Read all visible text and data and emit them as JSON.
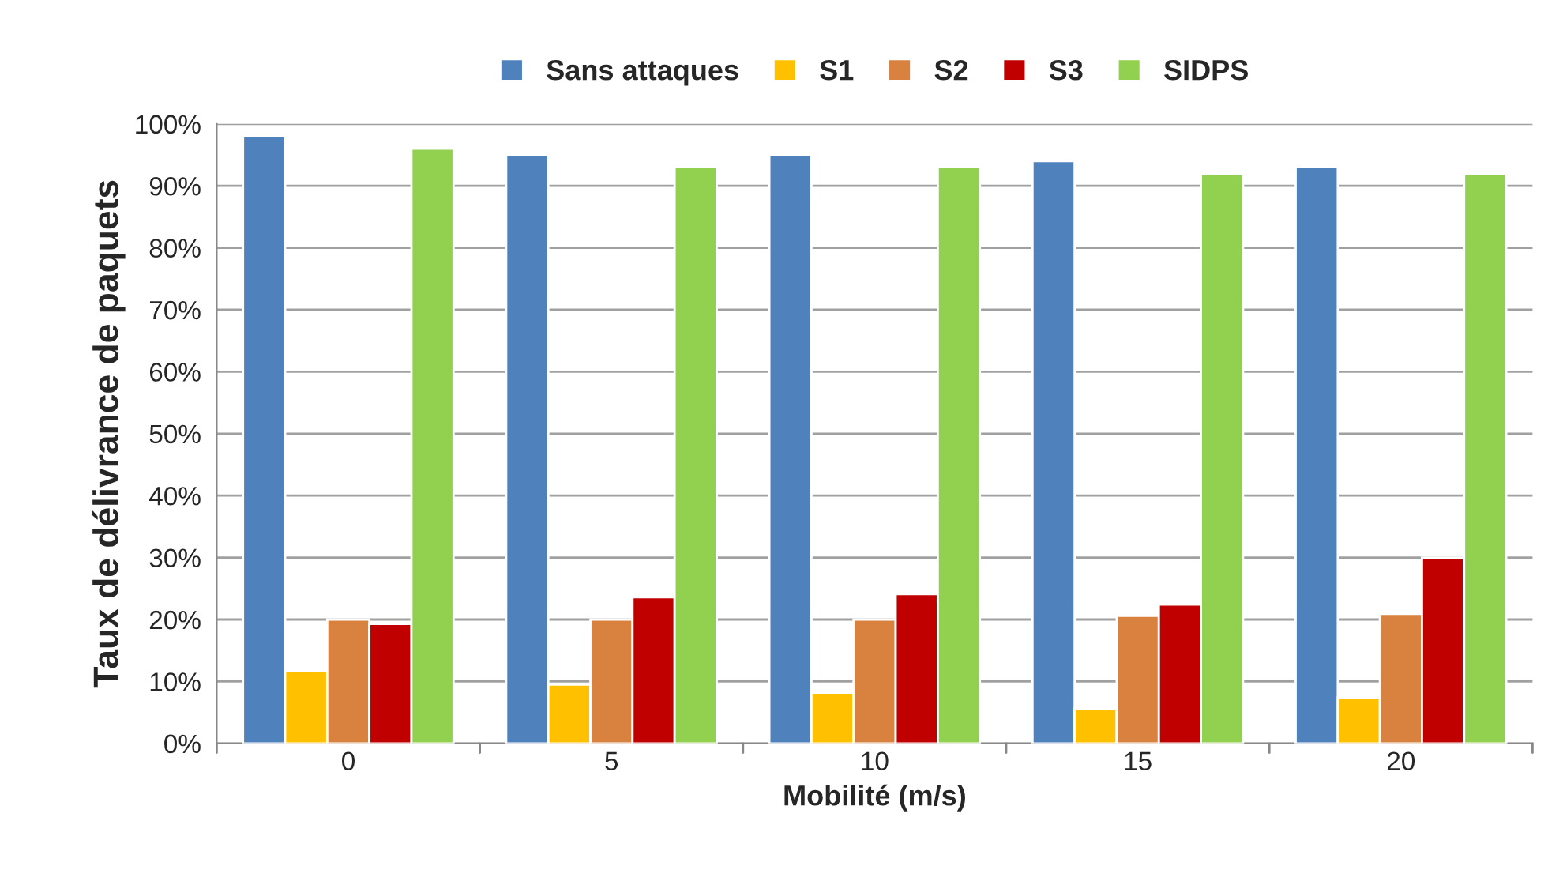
{
  "chart_data": {
    "type": "bar",
    "xlabel": "Mobilité (m/s)",
    "ylabel": "Taux de délivrance de paquets",
    "categories": [
      "0",
      "5",
      "10",
      "15",
      "20"
    ],
    "series": [
      {
        "name": "Sans attaques",
        "color": "#4f81bd",
        "values": [
          98,
          95,
          95,
          94,
          93
        ]
      },
      {
        "name": "S1",
        "color": "#ffc000",
        "values": [
          11.7,
          9.5,
          8.2,
          5.6,
          7.4
        ]
      },
      {
        "name": "S2",
        "color": "#d9823f",
        "values": [
          20,
          20,
          20,
          20.6,
          20.9
        ]
      },
      {
        "name": "S3",
        "color": "#c00000",
        "values": [
          19.3,
          23.6,
          24.1,
          22.4,
          30
        ]
      },
      {
        "name": "SIDPS",
        "color": "#92d050",
        "values": [
          96,
          93,
          93,
          92,
          92
        ]
      }
    ],
    "ylim": [
      0,
      100
    ],
    "yticks": [
      {
        "value": 0,
        "label": "0%"
      },
      {
        "value": 10,
        "label": "10%"
      },
      {
        "value": 20,
        "label": "20%"
      },
      {
        "value": 30,
        "label": "30%"
      },
      {
        "value": 40,
        "label": "40%"
      },
      {
        "value": 50,
        "label": "50%"
      },
      {
        "value": 60,
        "label": "60%"
      },
      {
        "value": 70,
        "label": "70%"
      },
      {
        "value": 80,
        "label": "80%"
      },
      {
        "value": 90,
        "label": "90%"
      },
      {
        "value": 100,
        "label": "100%"
      }
    ],
    "grid": "y",
    "legend": "top"
  }
}
